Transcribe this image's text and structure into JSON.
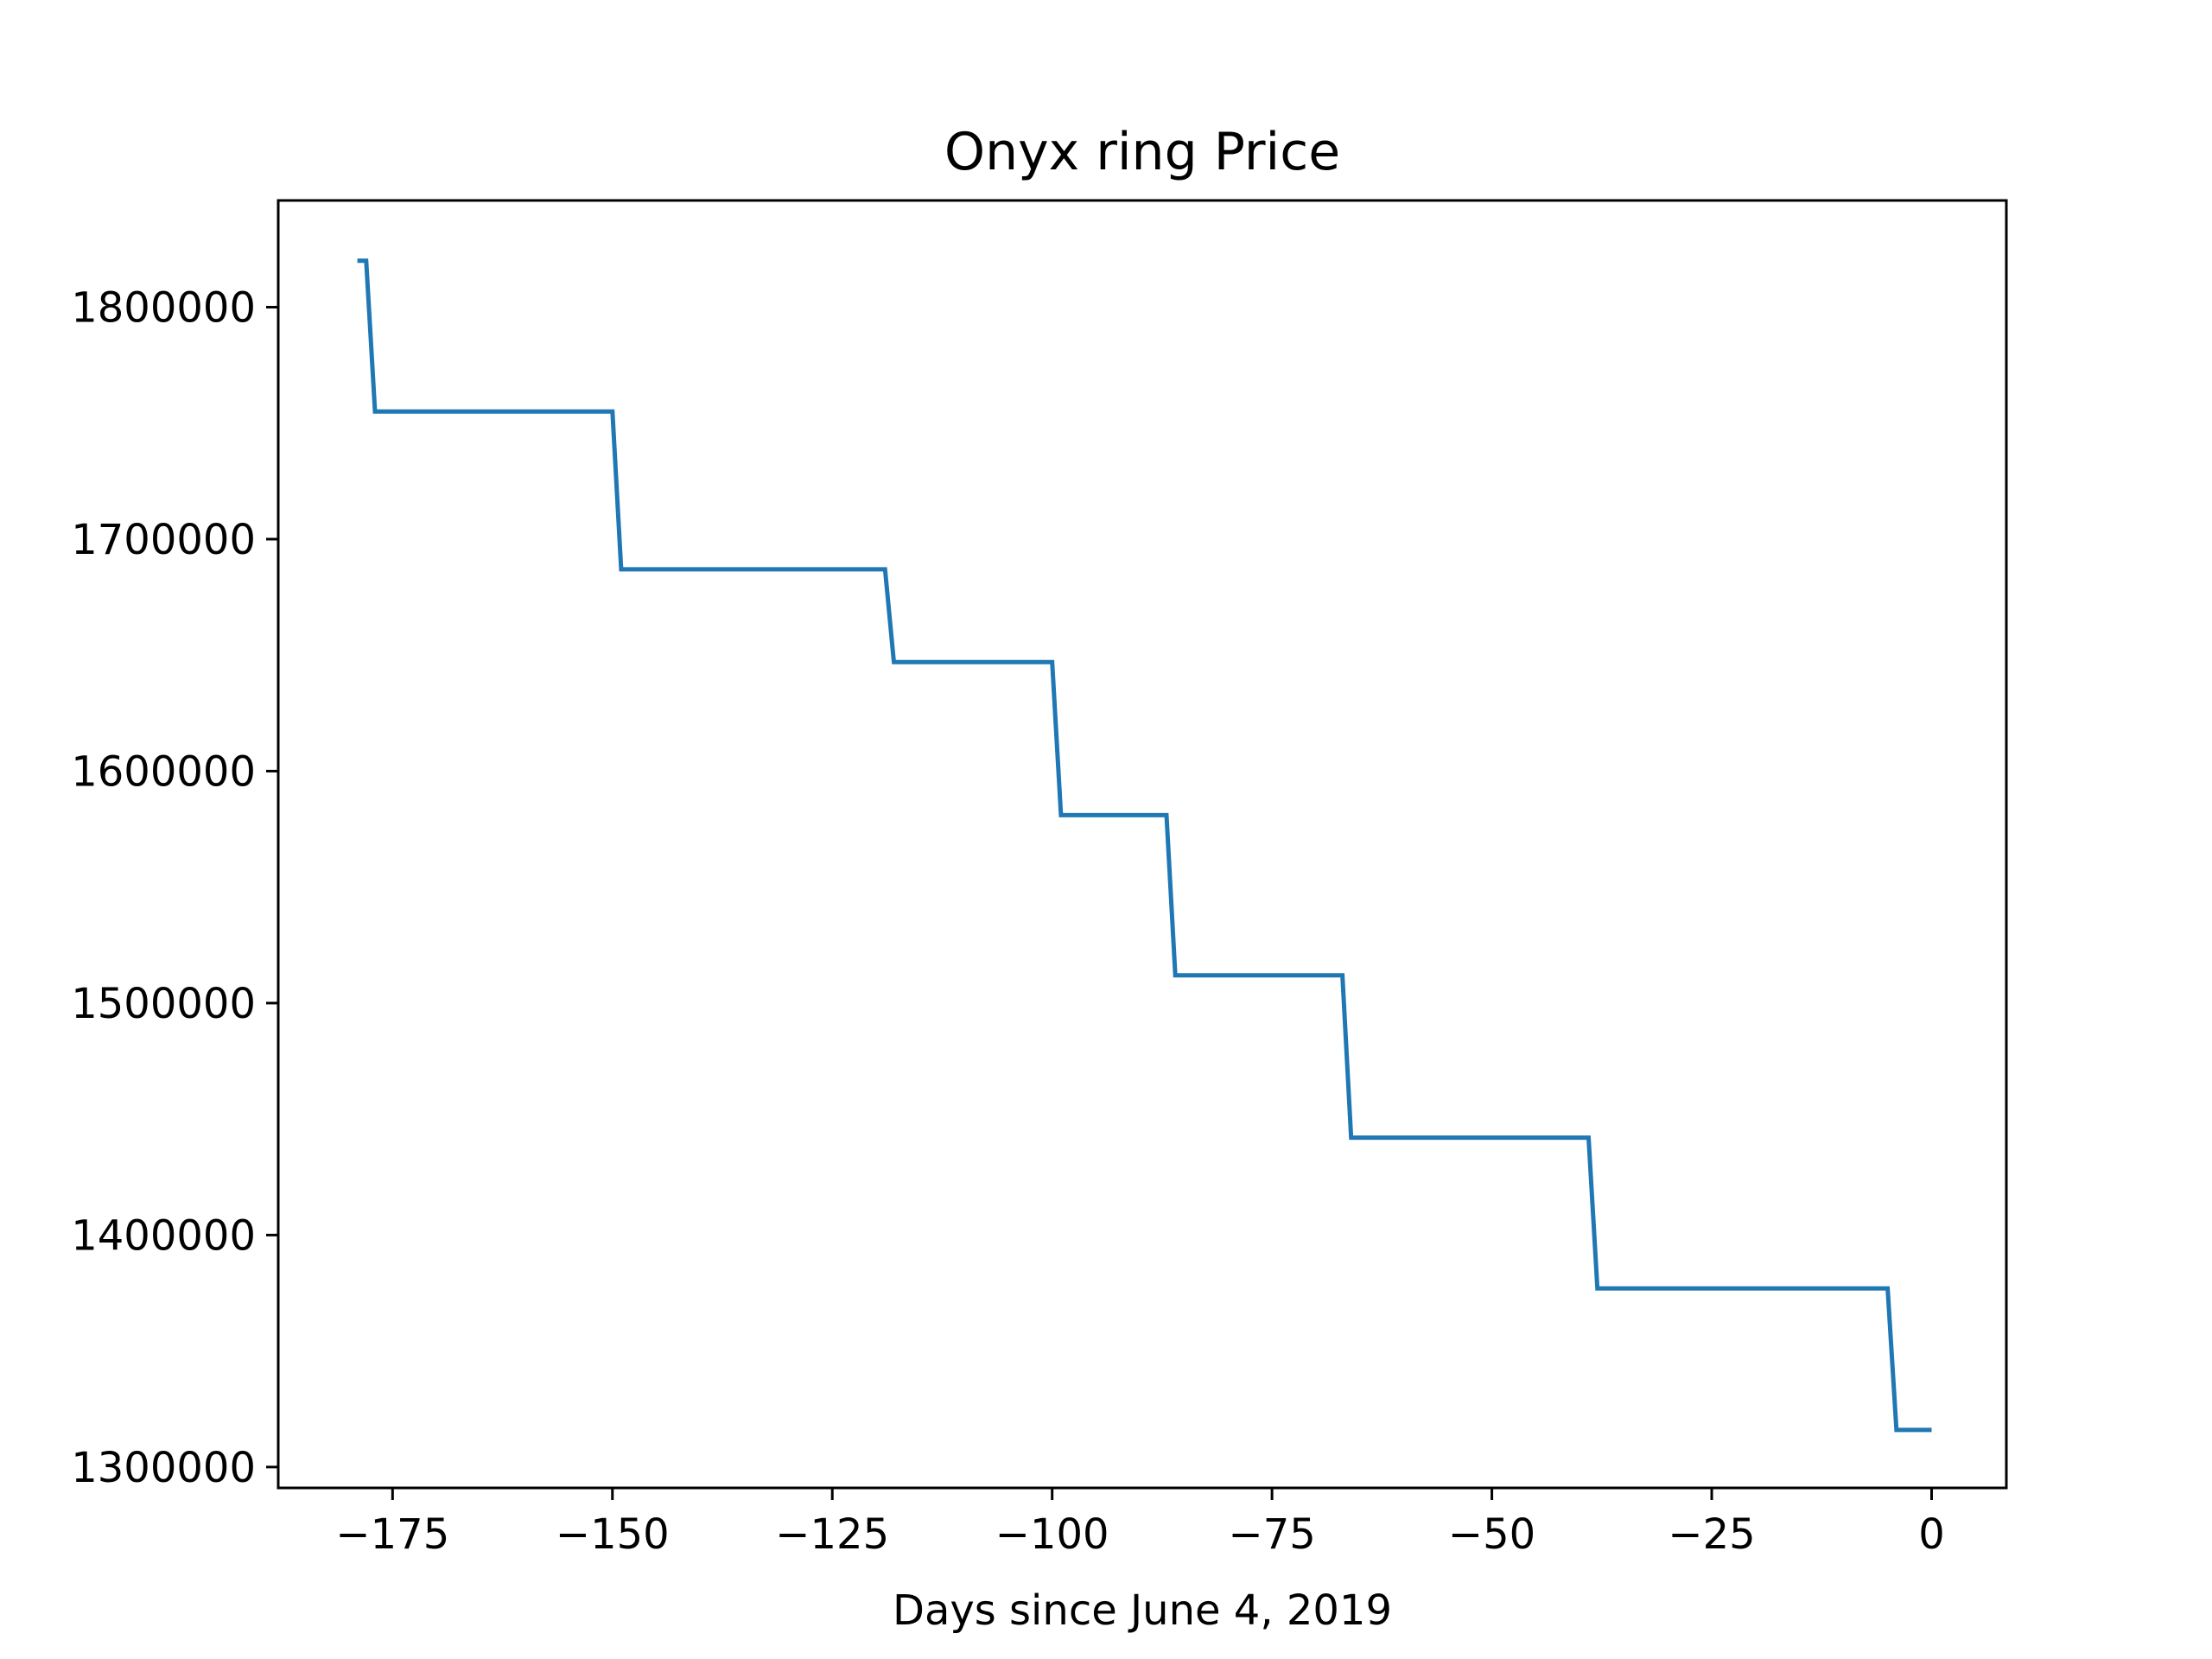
{
  "chart_data": {
    "type": "line",
    "title": "Onyx ring Price",
    "xlabel": "Days since June 4, 2019",
    "ylabel": "",
    "xlim": [
      -188,
      8.5
    ],
    "ylim": [
      1291000,
      1846000
    ],
    "xticks": [
      -175,
      -150,
      -125,
      -100,
      -75,
      -50,
      -25,
      0
    ],
    "xtick_labels": [
      "−175",
      "−150",
      "−125",
      "−100",
      "−75",
      "−50",
      "−25",
      "0"
    ],
    "yticks": [
      1300000,
      1400000,
      1500000,
      1600000,
      1700000,
      1800000
    ],
    "ytick_labels": [
      "1300000",
      "1400000",
      "1500000",
      "1600000",
      "1700000",
      "1800000"
    ],
    "grid": false,
    "series": [
      {
        "name": "",
        "color": "#1f77b4",
        "x": [
          -179,
          -178,
          -177,
          -150,
          -149,
          -119,
          -118,
          -100,
          -99,
          -87,
          -86,
          -67,
          -66,
          -39,
          -38,
          -5,
          -4,
          0
        ],
        "y": [
          1820000,
          1820000,
          1755000,
          1755000,
          1687000,
          1687000,
          1647000,
          1647000,
          1581000,
          1581000,
          1512000,
          1512000,
          1442000,
          1442000,
          1377000,
          1377000,
          1316000,
          1316000
        ]
      }
    ]
  }
}
